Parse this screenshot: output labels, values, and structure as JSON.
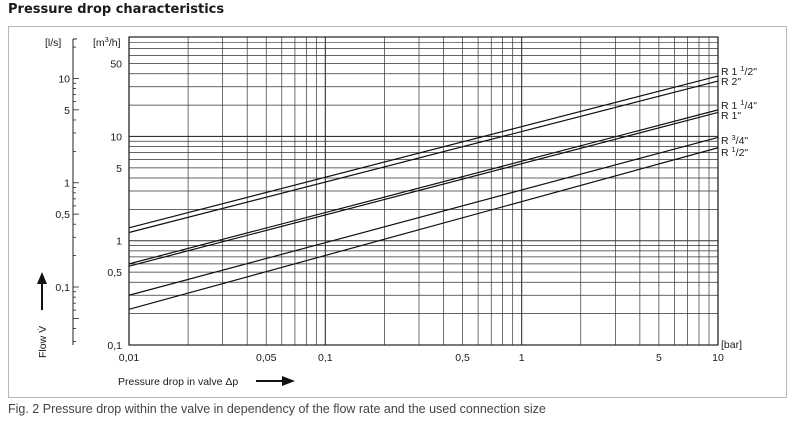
{
  "title": "Pressure drop characteristics",
  "caption": "Fig. 2 Pressure drop within the valve in dependency of the flow rate and the used connection size",
  "chart_data": {
    "type": "line",
    "x_scale": "log",
    "y_scale": "log",
    "xlim": [
      0.01,
      10
    ],
    "ylim_m3h": [
      0.1,
      90
    ],
    "ylim_ls": [
      0.0278,
      25
    ],
    "x_unit": "[bar]",
    "y_unit_m3h": "[m³/h]",
    "y_unit_ls": "[l/s]",
    "xlabel": "Pressure drop  in valve   Δp",
    "ylabel": "Flow V̇",
    "x_ticks": [
      {
        "value": 0.01,
        "label": "0,01"
      },
      {
        "value": 0.05,
        "label": "0,05"
      },
      {
        "value": 0.1,
        "label": "0,1"
      },
      {
        "value": 0.5,
        "label": "0,5"
      },
      {
        "value": 1,
        "label": "1"
      },
      {
        "value": 5,
        "label": "5"
      },
      {
        "value": 10,
        "label": "10"
      }
    ],
    "y_ticks_m3h": [
      {
        "value": 0.1,
        "label": "0,1"
      },
      {
        "value": 0.5,
        "label": "0,5"
      },
      {
        "value": 1,
        "label": "1"
      },
      {
        "value": 5,
        "label": "5"
      },
      {
        "value": 10,
        "label": "10"
      },
      {
        "value": 50,
        "label": "50"
      }
    ],
    "y_ticks_ls": [
      {
        "value": 0.1,
        "label": "0,1"
      },
      {
        "value": 0.5,
        "label": "0,5"
      },
      {
        "value": 1,
        "label": "1"
      },
      {
        "value": 5,
        "label": "5"
      },
      {
        "value": 10,
        "label": "10"
      }
    ],
    "series": [
      {
        "name": "R 1 1/2\"",
        "label_main": "R 1 ",
        "label_sup": "1",
        "label_sub": "/2\"",
        "x": [
          0.01,
          10
        ],
        "y": [
          1.33,
          38
        ]
      },
      {
        "name": "R 2\"",
        "label_main": "R 2\"",
        "label_sup": "",
        "label_sub": "",
        "x": [
          0.01,
          10
        ],
        "y": [
          1.2,
          34
        ]
      },
      {
        "name": "R 1 1/4\"",
        "label_main": "R 1 ",
        "label_sup": "1",
        "label_sub": "/4\"",
        "x": [
          0.01,
          10
        ],
        "y": [
          0.6,
          18
        ]
      },
      {
        "name": "R 1\"",
        "label_main": "R 1\"",
        "label_sup": "",
        "label_sub": "",
        "x": [
          0.01,
          10
        ],
        "y": [
          0.57,
          17
        ]
      },
      {
        "name": "R 3/4\"",
        "label_main": "R ",
        "label_sup": "3",
        "label_sub": "/4\"",
        "x": [
          0.01,
          10
        ],
        "y": [
          0.3,
          9.8
        ]
      },
      {
        "name": "R 1/2\"",
        "label_main": "R ",
        "label_sup": "1",
        "label_sub": "/2\"",
        "x": [
          0.01,
          10
        ],
        "y": [
          0.22,
          7.8
        ]
      }
    ]
  }
}
